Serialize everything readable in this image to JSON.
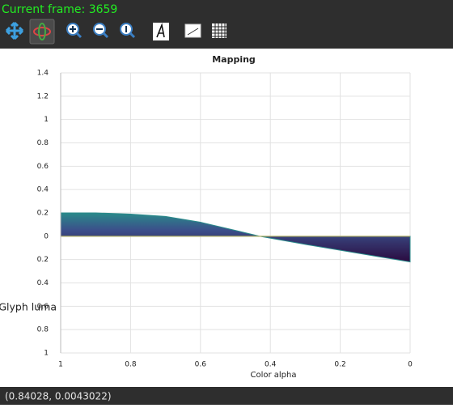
{
  "overlay": "Current frame: 3659",
  "status": "(0.84028, 0.0043022)",
  "chart_data": {
    "type": "area",
    "title": "Mapping",
    "xlabel": "Color alpha",
    "ylabel": "Glyph luma",
    "x": [
      1,
      0.9,
      0.8,
      0.7,
      0.6,
      0.5,
      0.43,
      0.3,
      0.2,
      0.1,
      0
    ],
    "values": [
      0.2,
      0.2,
      0.19,
      0.17,
      0.12,
      0.05,
      0,
      -0.07,
      -0.12,
      -0.17,
      -0.22
    ],
    "color": "#2a8a8a",
    "xlim": [
      1,
      0
    ],
    "xticks": [
      1,
      0.8,
      0.6,
      0.4,
      0.2,
      0
    ],
    "ylim": [
      -1,
      1.4
    ],
    "yticks": [
      1.4,
      1.2,
      1,
      0.8,
      0.6,
      0.4,
      0.2,
      0,
      {
        "value": -0.2,
        "label": "0.2"
      },
      {
        "value": -0.4,
        "label": "0.4"
      },
      {
        "value": -0.6,
        "label": "0.6"
      },
      {
        "value": -0.8,
        "label": "0.8"
      },
      {
        "value": -1,
        "label": "1"
      }
    ],
    "grid": true
  }
}
